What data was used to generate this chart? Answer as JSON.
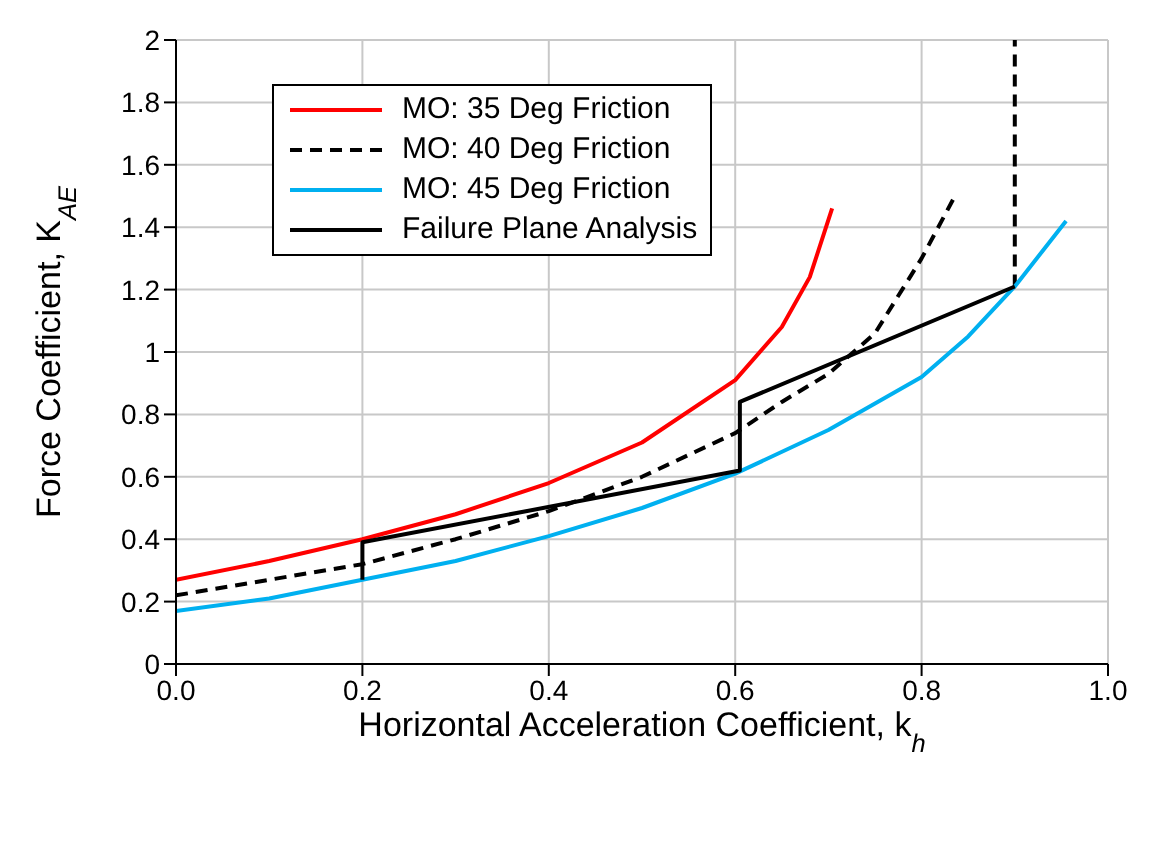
{
  "chart_data": {
    "type": "line",
    "xlabel": "Horizontal Acceleration Coefficient, k$_{h}$",
    "ylabel": "Force Coefficient, K$_{AE}$",
    "xlim": [
      0,
      1
    ],
    "xticks": [
      {
        "value": 0,
        "label": "0.0"
      },
      {
        "value": 0.2,
        "label": "0.2"
      },
      {
        "value": 0.4,
        "label": "0.4"
      },
      {
        "value": 0.6,
        "label": "0.6"
      },
      {
        "value": 0.8,
        "label": "0.8"
      },
      {
        "value": 1,
        "label": "1.0"
      }
    ],
    "ylim": [
      0,
      2
    ],
    "yticks": [
      0,
      0.2,
      0.4,
      0.6,
      0.8,
      1,
      1.2,
      1.4,
      1.6,
      1.8,
      2
    ],
    "grid": true,
    "legend": "top left",
    "marker": "none",
    "series": [
      {
        "name": "MO: 35 Deg Friction",
        "color": "#ff0000",
        "line_style": "solid",
        "x": [
          0,
          0.1,
          0.2,
          0.3,
          0.4,
          0.5,
          0.6,
          0.65,
          0.68,
          0.704
        ],
        "values": [
          0.27,
          0.33,
          0.4,
          0.48,
          0.58,
          0.71,
          0.91,
          1.08,
          1.24,
          1.46
        ]
      },
      {
        "name": "MO: 40 Deg Friction",
        "color": "#000000",
        "line_style": "dashed",
        "x": [
          0,
          0.1,
          0.2,
          0.3,
          0.4,
          0.5,
          0.6,
          0.65,
          0.7,
          0.75,
          0.8,
          0.834
        ],
        "values": [
          0.22,
          0.27,
          0.32,
          0.4,
          0.49,
          0.6,
          0.74,
          0.84,
          0.93,
          1.06,
          1.3,
          1.49
        ]
      },
      {
        "color": "#000000",
        "line_style": "dashed",
        "x": [
          0.9,
          0.9
        ],
        "values": [
          1.21,
          2
        ]
      },
      {
        "name": "MO: 45 Deg Friction",
        "color": "#00b0f0",
        "line_style": "solid",
        "x": [
          0,
          0.1,
          0.2,
          0.3,
          0.4,
          0.5,
          0.6,
          0.7,
          0.8,
          0.85,
          0.9,
          0.955
        ],
        "values": [
          0.17,
          0.21,
          0.27,
          0.33,
          0.41,
          0.5,
          0.61,
          0.75,
          0.92,
          1.05,
          1.21,
          1.42
        ]
      },
      {
        "name": "Failure Plane Analysis",
        "color": "#000000",
        "line_style": "solid",
        "x": [
          0.2,
          0.2,
          0.605,
          0.605,
          0.9
        ],
        "values": [
          0.27,
          0.39,
          0.62,
          0.84,
          1.21
        ]
      }
    ]
  }
}
